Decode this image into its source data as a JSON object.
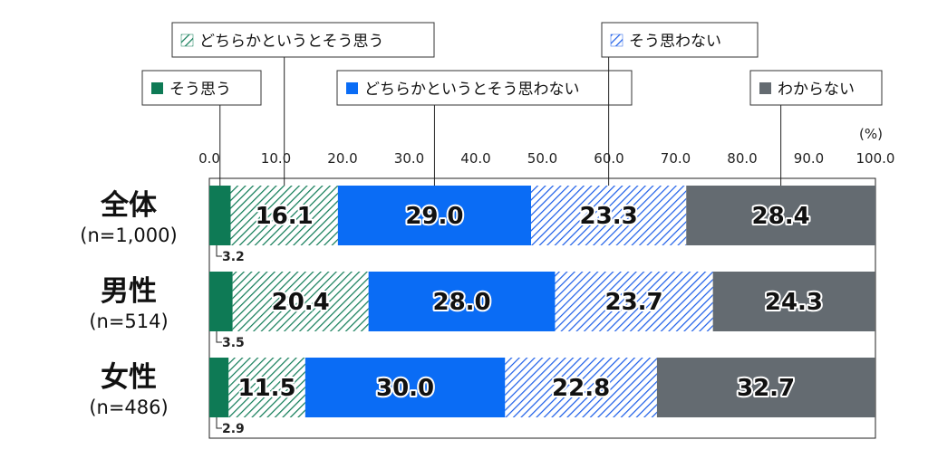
{
  "chart_data": {
    "type": "bar",
    "orientation": "horizontal",
    "stacked": true,
    "unit_label": "(%)",
    "xlim": [
      0,
      100
    ],
    "x_ticks": [
      "0.0",
      "10.0",
      "20.0",
      "30.0",
      "40.0",
      "50.0",
      "60.0",
      "70.0",
      "80.0",
      "90.0",
      "100.0"
    ],
    "categories": [
      {
        "name": "全体",
        "n": "(n=1,000)"
      },
      {
        "name": "男性",
        "n": "(n=514)"
      },
      {
        "name": "女性",
        "n": "(n=486)"
      }
    ],
    "series": [
      {
        "name": "そう思う",
        "values": [
          3.2,
          3.5,
          2.9
        ],
        "color": "#0e7a55",
        "pattern": "solid"
      },
      {
        "name": "どちらかというとそう思う",
        "values": [
          16.1,
          20.4,
          11.5
        ],
        "color": "#0e7a55",
        "pattern": "hatch"
      },
      {
        "name": "どちらかというとそう思わない",
        "values": [
          29.0,
          28.0,
          30.0
        ],
        "color": "#0a6cf5",
        "pattern": "solid"
      },
      {
        "name": "そう思わない",
        "values": [
          23.3,
          23.7,
          22.8
        ],
        "color": "#1a5ce8",
        "pattern": "hatch"
      },
      {
        "name": "わからない",
        "values": [
          28.4,
          24.3,
          32.7
        ],
        "color": "#646b71",
        "pattern": "solid"
      }
    ],
    "grid": false,
    "legend": "top, callouts"
  }
}
